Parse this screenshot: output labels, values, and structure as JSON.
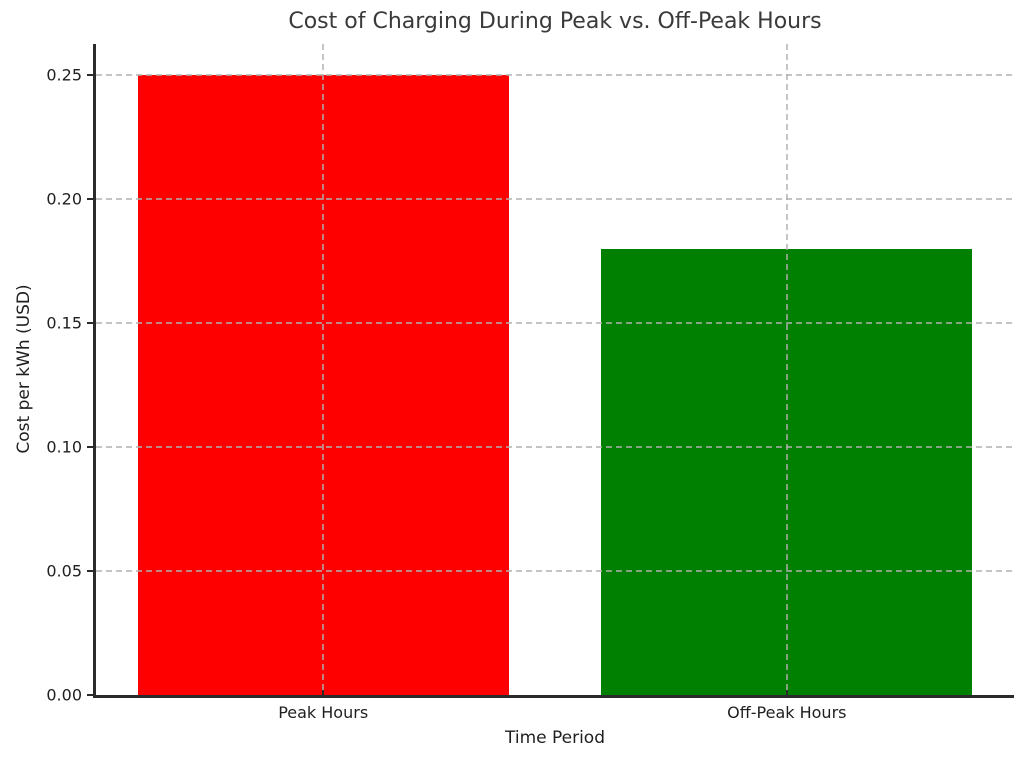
{
  "chart_data": {
    "type": "bar",
    "title": "Cost of Charging During Peak vs. Off-Peak Hours",
    "xlabel": "Time Period",
    "ylabel": "Cost per kWh (USD)",
    "categories": [
      "Peak Hours",
      "Off-Peak Hours"
    ],
    "values": [
      0.25,
      0.18
    ],
    "bar_colors": [
      "#ff0000",
      "#008000"
    ],
    "ytick_labels": [
      "0.00",
      "0.05",
      "0.10",
      "0.15",
      "0.20",
      "0.25"
    ],
    "yticks": [
      0.0,
      0.05,
      0.1,
      0.15,
      0.2,
      0.25
    ],
    "ylim": [
      0,
      0.2625
    ],
    "xlim": [
      -0.49,
      1.49
    ],
    "bar_width": 0.8,
    "grid": true,
    "grid_style": "dashed",
    "grid_color": "#b0b0b0",
    "legend": null
  }
}
